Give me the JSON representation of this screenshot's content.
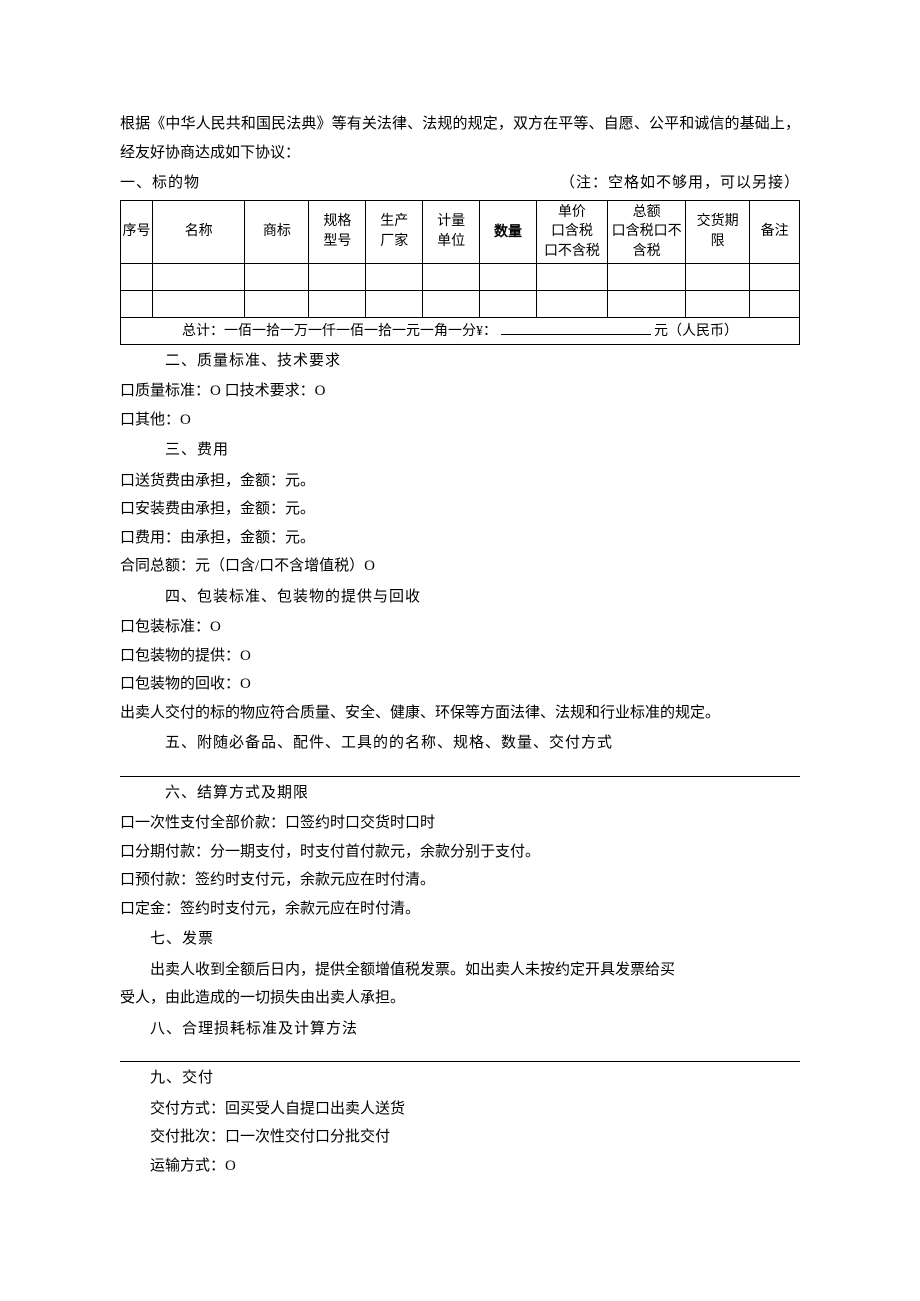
{
  "intro": "根据《中华人民共和国民法典》等有关法律、法规的规定，双方在平等、自愿、公平和诚信的基础上，经友好协商达成如下协议：",
  "s1": {
    "title": "一、标的物",
    "note": "（注：空格如不够用，可以另接）",
    "table": {
      "columns": [
        "序号",
        "名称",
        "商标",
        "规格型号",
        "生产厂家",
        "计量单位",
        "数量",
        "单价 口含税 口不含税",
        "总额 口含税口不含税",
        "交货期限",
        "备注"
      ],
      "col_seq": "序号",
      "col_name": "名称",
      "col_brand": "商标",
      "col_spec_l1": "规格",
      "col_spec_l2": "型号",
      "col_maker_l1": "生产",
      "col_maker_l2": "厂家",
      "col_unit_l1": "计量",
      "col_unit_l2": "单位",
      "col_qty": "数量",
      "col_price_l1": "单价",
      "col_price_l2": "口含税",
      "col_price_l3": "口不含税",
      "col_total_l1": "总额",
      "col_total_l2": "口含税口不",
      "col_total_l3": "含税",
      "col_deliv_l1": "交货期",
      "col_deliv_l2": "限",
      "col_note": "备注",
      "total_left": "总计：一佰一拾一万一仟一佰一拾一元一角一分¥：",
      "total_right": "元（人民币）"
    }
  },
  "s2": {
    "title": "二、质量标准、技术要求",
    "l1": "口质量标准：O 口技术要求：O",
    "l2": "口其他：O"
  },
  "s3": {
    "title": "三、费用",
    "l1": "口送货费由承担，金额：元。",
    "l2": "口安装费由承担，金额：元。",
    "l3": "口费用：由承担，金额：元。",
    "l4": "合同总额：元（口含/口不含增值税）O"
  },
  "s4": {
    "title": "四、包装标准、包装物的提供与回收",
    "l1": "口包装标准：O",
    "l2": "口包装物的提供：O",
    "l3": "口包装物的回收：O",
    "l4": "出卖人交付的标的物应符合质量、安全、健康、环保等方面法律、法规和行业标准的规定。"
  },
  "s5": {
    "title": "五、附随必备品、配件、工具的的名称、规格、数量、交付方式"
  },
  "s6": {
    "title": "六、结算方式及期限",
    "l1": "口一次性支付全部价款：口签约时口交货时口时",
    "l2": "口分期付款：分一期支付，时支付首付款元，余款分别于支付。",
    "l3": "口预付款：签约时支付元，余款元应在时付清。",
    "l4": "口定金：签约时支付元，余款元应在时付清。"
  },
  "s7": {
    "title": "七、发票",
    "l1": "出卖人收到全额后日内，提供全额增值税发票。如出卖人未按约定开具发票给买",
    "l2": "受人，由此造成的一切损失由出卖人承担。"
  },
  "s8": {
    "title": "八、合理损耗标准及计算方法"
  },
  "s9": {
    "title": "九、交付",
    "l1": "交付方式：回买受人自提口出卖人送货",
    "l2": "交付批次：口一次性交付口分批交付",
    "l3": "运输方式：O"
  }
}
